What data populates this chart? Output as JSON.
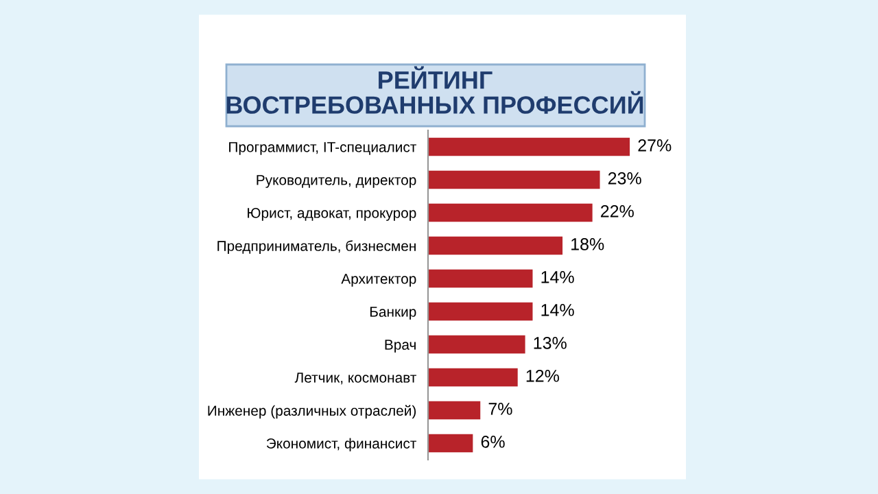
{
  "chart_data": {
    "type": "bar",
    "orientation": "horizontal",
    "title": "РЕЙТИНГ\nВОСТРЕБОВАННЫХ ПРОФЕССИЙ",
    "categories": [
      "Программист, IT-специалист",
      "Руководитель, директор",
      "Юрист, адвокат, прокурор",
      "Предприниматель, бизнесмен",
      "Архитектор",
      "Банкир",
      "Врач",
      "Летчик, космонавт",
      "Инженер (различных отраслей)",
      "Экономист, финансист"
    ],
    "values": [
      27,
      23,
      22,
      18,
      14,
      14,
      13,
      12,
      7,
      6
    ],
    "value_labels": [
      "27%",
      "23%",
      "22%",
      "18%",
      "14%",
      "14%",
      "13%",
      "12%",
      "7%",
      "6%"
    ],
    "color": "#b8232a",
    "grid": false,
    "legend": false
  }
}
